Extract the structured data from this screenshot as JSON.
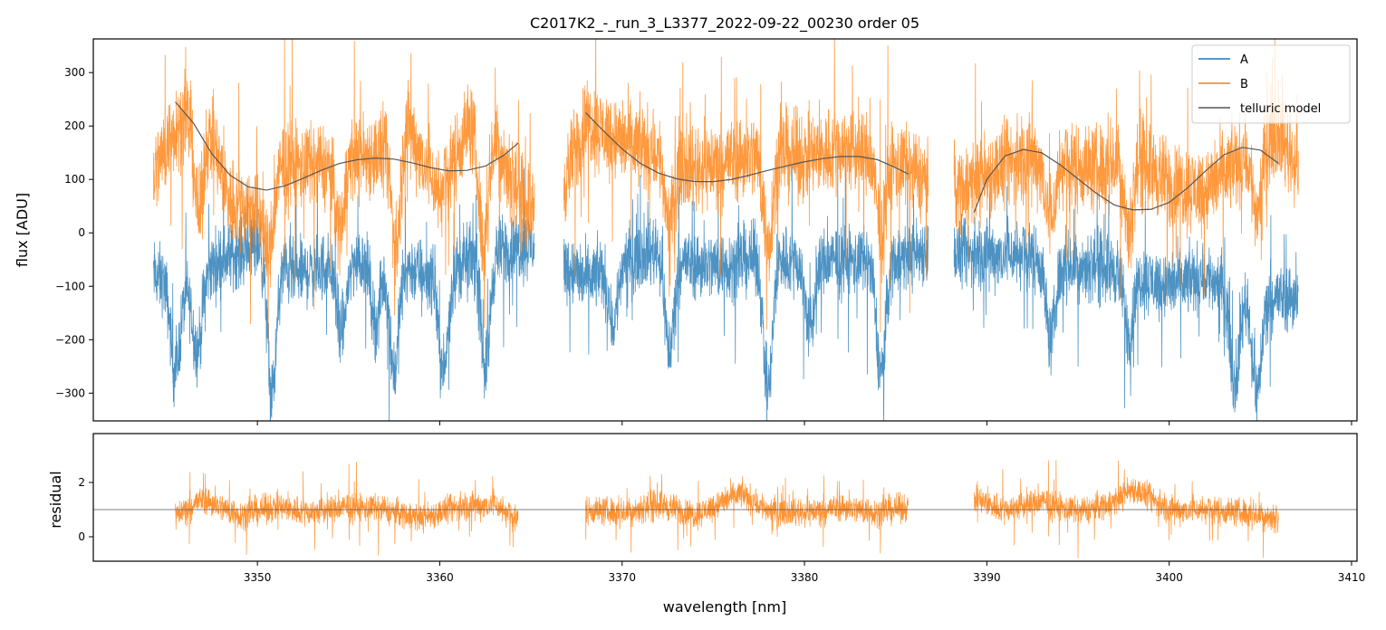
{
  "chart_data": [
    {
      "type": "line",
      "title": "C2017K2_-_run_3_L3377_2022-09-22_00230  order 05",
      "xlabel": "",
      "ylabel": "flux [ADU]",
      "xlim": [
        3341,
        3410.3
      ],
      "ylim": [
        -352,
        363
      ],
      "yticks": [
        -300,
        -200,
        -100,
        0,
        100,
        200,
        300
      ],
      "xticks": [
        3350,
        3360,
        3370,
        3380,
        3390,
        3400,
        3410
      ],
      "segments": [
        [
          3344.3,
          3365.2
        ],
        [
          3366.8,
          3386.8
        ],
        [
          3388.2,
          3407.1
        ]
      ],
      "telluric_ranges": [
        [
          3345.5,
          3364.3
        ],
        [
          3368.0,
          3385.7
        ],
        [
          3389.3,
          3406.0
        ]
      ],
      "series": [
        {
          "name": "A",
          "color": "#1f77b4",
          "center": [
            [
              3344.3,
              -80
            ],
            [
              3346,
              -110
            ],
            [
              3348,
              -50
            ],
            [
              3350,
              -20
            ],
            [
              3352,
              -80
            ],
            [
              3354,
              -60
            ],
            [
              3356,
              -50
            ],
            [
              3358,
              -60
            ],
            [
              3360,
              -90
            ],
            [
              3362,
              -40
            ],
            [
              3364,
              -30
            ],
            [
              3365.2,
              -20
            ],
            [
              3366.8,
              -60
            ],
            [
              3368,
              -90
            ],
            [
              3370,
              -50
            ],
            [
              3372,
              -30
            ],
            [
              3374,
              -60
            ],
            [
              3376,
              -60
            ],
            [
              3378,
              -40
            ],
            [
              3380,
              -60
            ],
            [
              3382,
              -50
            ],
            [
              3384,
              -60
            ],
            [
              3386.8,
              -30
            ],
            [
              3388.2,
              -40
            ],
            [
              3390,
              -40
            ],
            [
              3392,
              -40
            ],
            [
              3394,
              -60
            ],
            [
              3396,
              -60
            ],
            [
              3398,
              -80
            ],
            [
              3400,
              -100
            ],
            [
              3402,
              -80
            ],
            [
              3404,
              -120
            ],
            [
              3406,
              -120
            ],
            [
              3407.1,
              -120
            ]
          ],
          "noise": 55,
          "dips": [
            [
              3345.5,
              -260
            ],
            [
              3346.7,
              -220
            ],
            [
              3350.8,
              -300
            ],
            [
              3354.6,
              -190
            ],
            [
              3356.5,
              -170
            ],
            [
              3357.5,
              -260
            ],
            [
              3360.2,
              -260
            ],
            [
              3362.5,
              -250
            ],
            [
              3369.5,
              -170
            ],
            [
              3372.6,
              -220
            ],
            [
              3378.0,
              -300
            ],
            [
              3380.3,
              -180
            ],
            [
              3384.2,
              -260
            ],
            [
              3393.5,
              -200
            ],
            [
              3397.8,
              -190
            ],
            [
              3403.6,
              -280
            ],
            [
              3404.8,
              -300
            ]
          ]
        },
        {
          "name": "B",
          "color": "#ff7f0e",
          "center": [
            [
              3344.3,
              110
            ],
            [
              3345.5,
              200
            ],
            [
              3347,
              230
            ],
            [
              3348.5,
              60
            ],
            [
              3350,
              40
            ],
            [
              3351.5,
              130
            ],
            [
              3353,
              120
            ],
            [
              3355,
              140
            ],
            [
              3357,
              150
            ],
            [
              3358,
              220
            ],
            [
              3360,
              70
            ],
            [
              3361.5,
              200
            ],
            [
              3363,
              180
            ],
            [
              3364.5,
              60
            ],
            [
              3365.2,
              40
            ],
            [
              3366.8,
              90
            ],
            [
              3368,
              210
            ],
            [
              3370,
              170
            ],
            [
              3372,
              150
            ],
            [
              3374,
              120
            ],
            [
              3376,
              140
            ],
            [
              3378,
              150
            ],
            [
              3380,
              140
            ],
            [
              3382,
              160
            ],
            [
              3384,
              140
            ],
            [
              3386.8,
              100
            ],
            [
              3388.2,
              80
            ],
            [
              3390,
              110
            ],
            [
              3392,
              140
            ],
            [
              3394,
              130
            ],
            [
              3396,
              120
            ],
            [
              3398,
              150
            ],
            [
              3400,
              90
            ],
            [
              3402,
              80
            ],
            [
              3404,
              140
            ],
            [
              3406,
              190
            ],
            [
              3407.1,
              120
            ]
          ],
          "noise": 70,
          "dips": [
            [
              3346.8,
              30
            ],
            [
              3350.6,
              -40
            ],
            [
              3354.5,
              10
            ],
            [
              3357.6,
              -30
            ],
            [
              3362.4,
              -20
            ],
            [
              3372.6,
              20
            ],
            [
              3378.0,
              -20
            ],
            [
              3384.2,
              0
            ],
            [
              3393.5,
              20
            ],
            [
              3397.8,
              10
            ],
            [
              3404.8,
              40
            ]
          ]
        },
        {
          "name": "telluric model",
          "color": "#555555",
          "x": [
            3345.5,
            3346.5,
            3347.5,
            3348.5,
            3349.5,
            3350.5,
            3351.5,
            3352.5,
            3353.5,
            3354.5,
            3355.5,
            3356.5,
            3357.5,
            3358.5,
            3359.5,
            3360.5,
            3361.5,
            3362.5,
            3363.5,
            3364.3,
            3368.0,
            3369.0,
            3370.0,
            3371.0,
            3372.0,
            3373.0,
            3374.0,
            3375.0,
            3376.0,
            3377.0,
            3378.0,
            3379.0,
            3380.0,
            3381.0,
            3382.0,
            3383.0,
            3384.0,
            3385.0,
            3385.7,
            3389.3,
            3390.0,
            3391.0,
            3392.0,
            3393.0,
            3394.0,
            3395.0,
            3396.0,
            3397.0,
            3398.0,
            3399.0,
            3400.0,
            3401.0,
            3402.0,
            3403.0,
            3404.0,
            3405.0,
            3406.0
          ],
          "y": [
            245,
            205,
            148,
            108,
            86,
            80,
            88,
            102,
            117,
            130,
            137,
            140,
            138,
            131,
            122,
            116,
            117,
            125,
            145,
            168,
            225,
            190,
            157,
            130,
            112,
            101,
            96,
            96,
            100,
            108,
            117,
            125,
            133,
            139,
            143,
            143,
            137,
            122,
            110,
            38,
            100,
            144,
            156,
            150,
            128,
            101,
            74,
            52,
            43,
            44,
            57,
            84,
            116,
            146,
            160,
            155,
            130
          ]
        }
      ],
      "legend": {
        "placement": "top-right",
        "entries": [
          "A",
          "B",
          "telluric model"
        ]
      }
    },
    {
      "type": "line",
      "xlabel": "wavelength [nm]",
      "ylabel": "residual",
      "xlim": [
        3341,
        3410.3
      ],
      "ylim": [
        -0.9,
        3.8
      ],
      "yticks": [
        0,
        2
      ],
      "xticks": [
        3350,
        3360,
        3370,
        3380,
        3390,
        3400,
        3410
      ],
      "reference_line": 1,
      "series": [
        {
          "name": "residual",
          "color": "#ff7f0e",
          "segments": [
            [
              3345.5,
              3364.3
            ],
            [
              3368.0,
              3385.7
            ],
            [
              3389.3,
              3406.0
            ]
          ],
          "center": [
            [
              3345.5,
              0.8
            ],
            [
              3347,
              1.4
            ],
            [
              3349,
              0.8
            ],
            [
              3351,
              1.1
            ],
            [
              3353,
              0.9
            ],
            [
              3355,
              1.1
            ],
            [
              3357,
              1.0
            ],
            [
              3359,
              0.7
            ],
            [
              3361,
              1.1
            ],
            [
              3363,
              1.2
            ],
            [
              3364.3,
              0.6
            ],
            [
              3368,
              1.0
            ],
            [
              3370,
              0.9
            ],
            [
              3372,
              1.2
            ],
            [
              3374,
              0.8
            ],
            [
              3376.5,
              1.6
            ],
            [
              3378,
              1.0
            ],
            [
              3380,
              0.9
            ],
            [
              3382,
              1.1
            ],
            [
              3384,
              0.9
            ],
            [
              3385.7,
              1.1
            ],
            [
              3389.3,
              1.4
            ],
            [
              3391,
              1.0
            ],
            [
              3393,
              1.3
            ],
            [
              3395,
              0.9
            ],
            [
              3397,
              1.3
            ],
            [
              3398,
              1.8
            ],
            [
              3400,
              1.0
            ],
            [
              3402,
              1.0
            ],
            [
              3404,
              0.9
            ],
            [
              3406,
              0.7
            ]
          ],
          "noise": 0.45
        }
      ]
    }
  ],
  "xtick_labels": [
    "3350",
    "3360",
    "3370",
    "3380",
    "3390",
    "3400",
    "3410"
  ],
  "ytick_labels_main": [
    "−300",
    "−200",
    "−100",
    "0",
    "100",
    "200",
    "300"
  ],
  "ytick_labels_resid": [
    "0",
    "2"
  ]
}
